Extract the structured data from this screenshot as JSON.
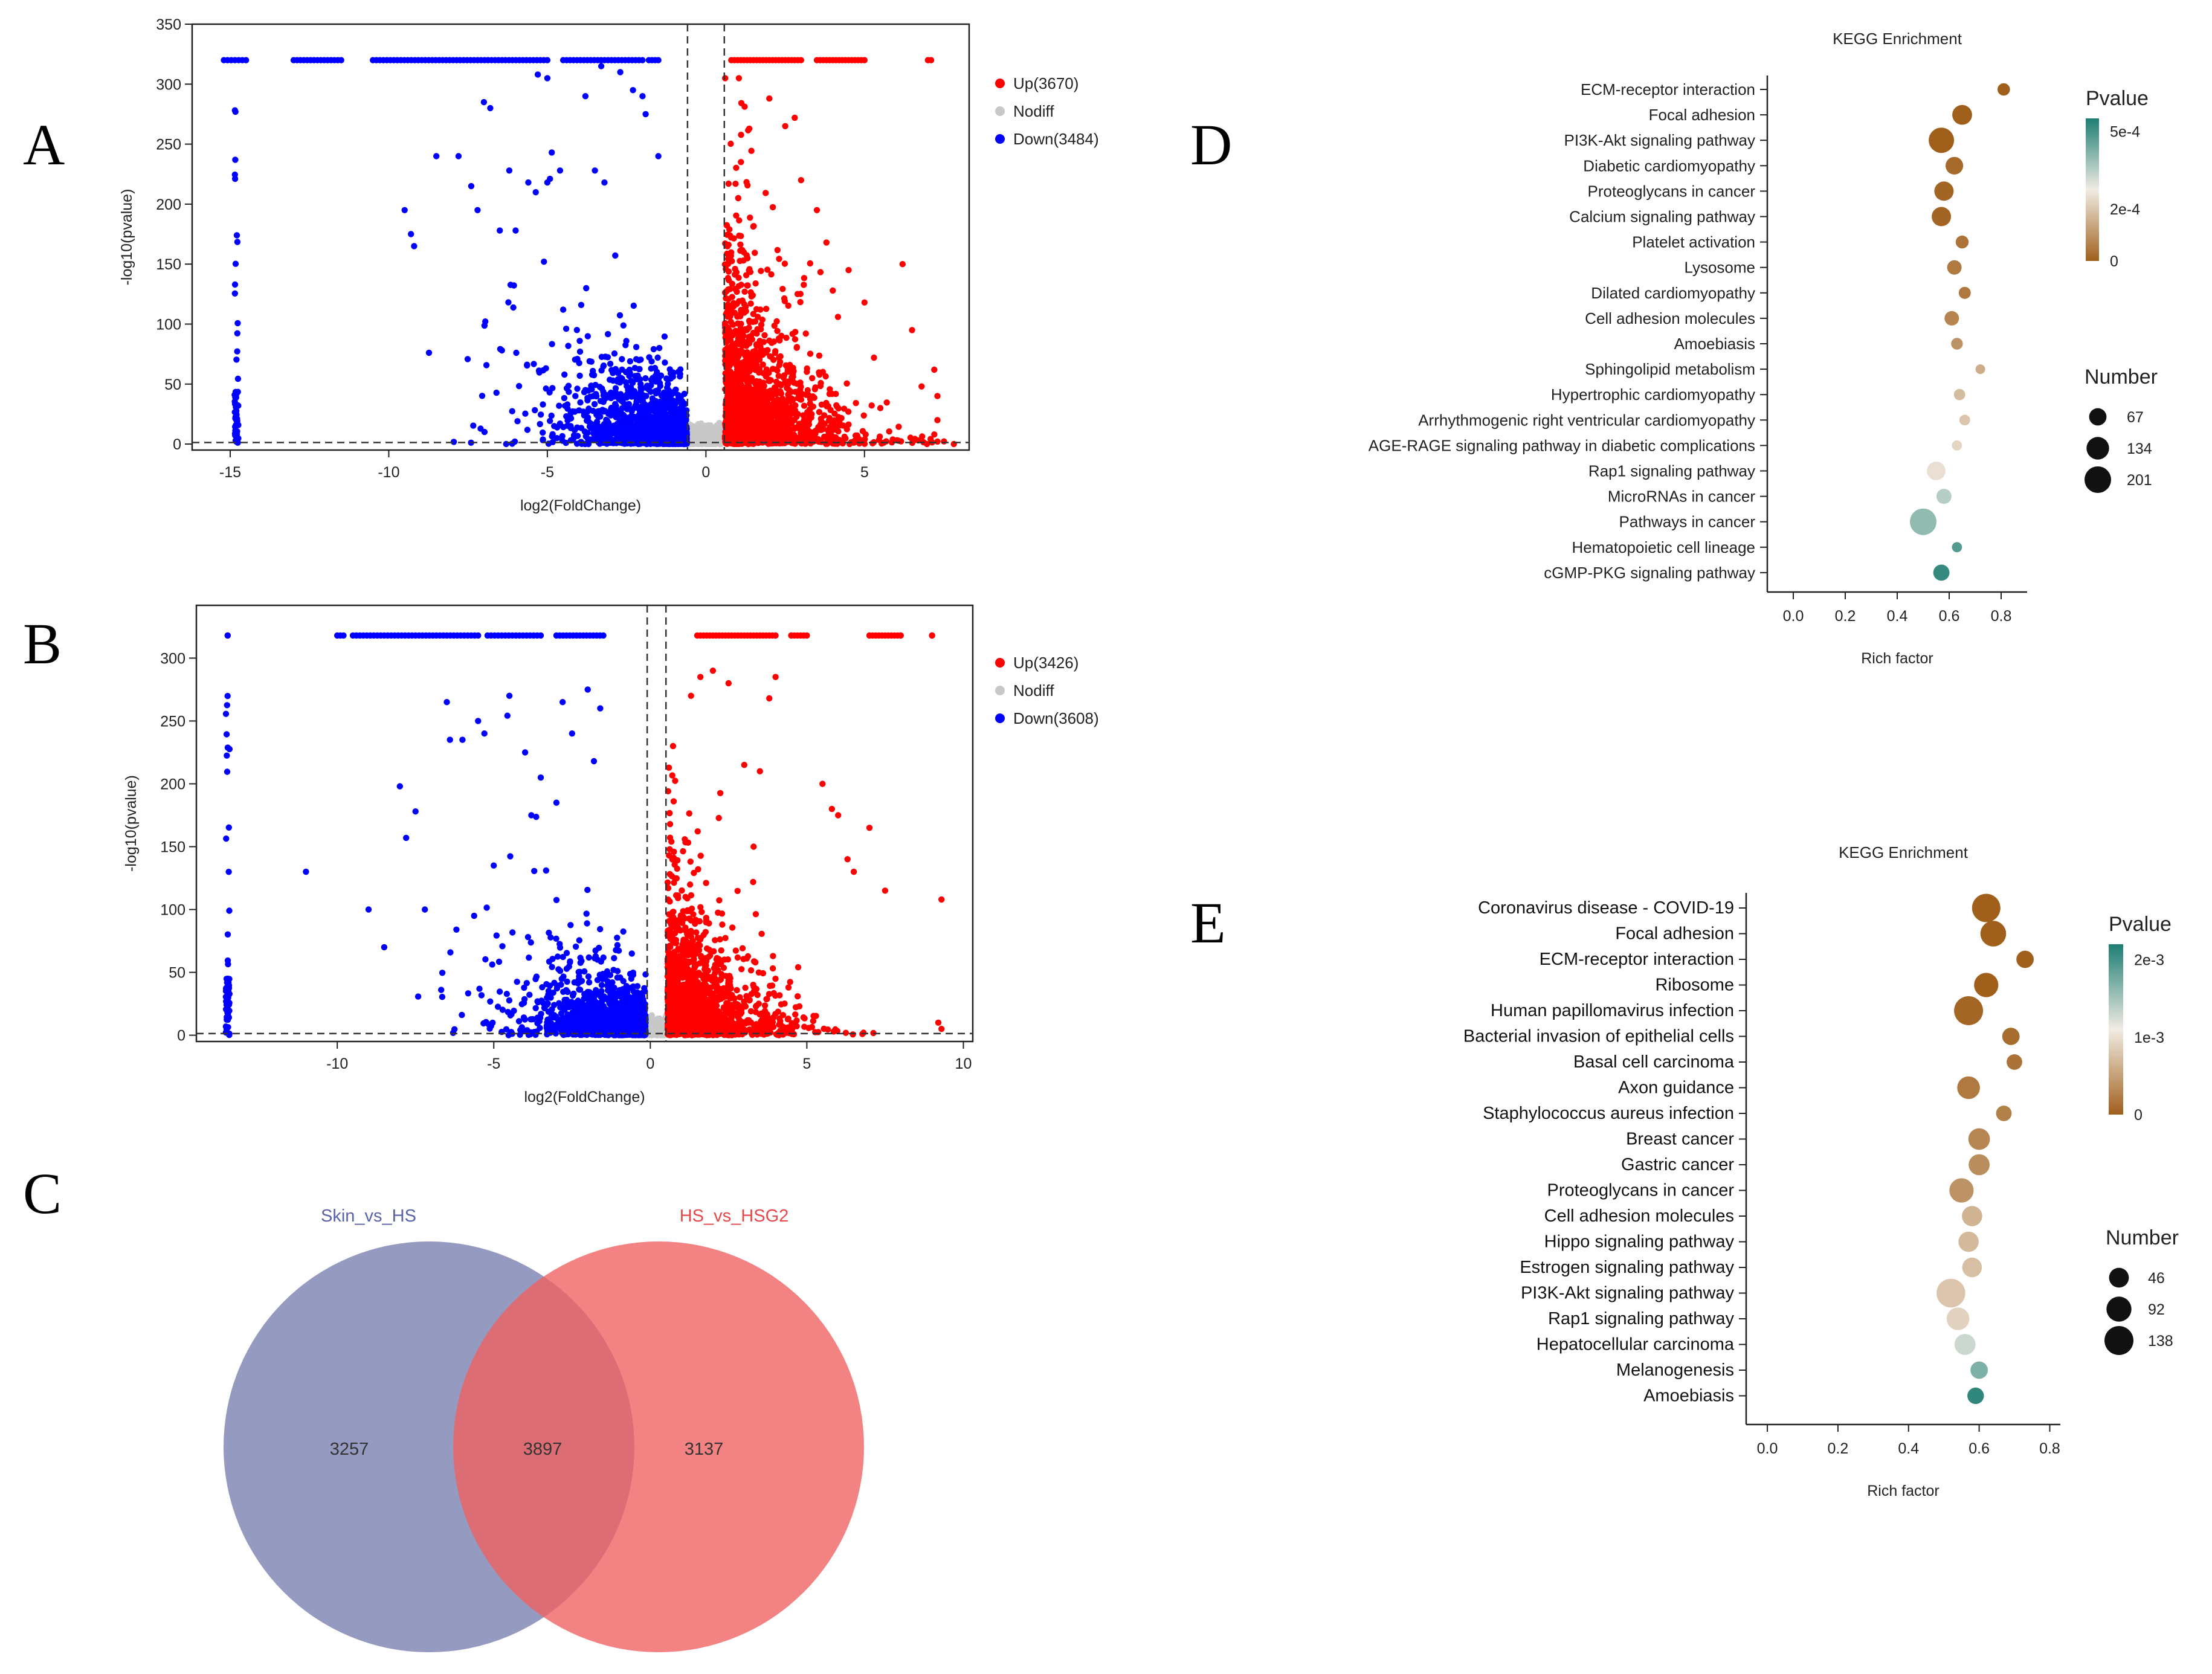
{
  "panel_letters": {
    "A": "A",
    "B": "B",
    "C": "C",
    "D": "D",
    "E": "E"
  },
  "colors": {
    "up": "#ff0000",
    "nodiff": "#c8c8c8",
    "down": "#0000ff",
    "venn_left": "#8288b6",
    "venn_right": "#f06060",
    "p_low": "#a0601c",
    "p_mid": "#f1ece4",
    "p_high": "#1d7e73"
  },
  "chart_data": [
    {
      "id": "A",
      "type": "scatter",
      "xlabel": "log2(FoldChange)",
      "ylabel": "-log10(pvalue)",
      "xlim": [
        -16.2,
        8.3
      ],
      "ylim": [
        -5,
        350
      ],
      "xticks": [
        -15,
        -10,
        -5,
        0,
        5
      ],
      "yticks": [
        0,
        50,
        100,
        150,
        200,
        250,
        300,
        350
      ],
      "vlines": [
        -0.58,
        0.58
      ],
      "hline": 1.3,
      "legend": [
        {
          "key": "up",
          "label": "Up",
          "count": "(3670)"
        },
        {
          "key": "nodiff",
          "label": "Nodiff",
          "count": ""
        },
        {
          "key": "down",
          "label": "Down",
          "count": "(3484)"
        }
      ],
      "cap": 320,
      "pile_x": -14.8,
      "down_cap_x": [
        [
          -15.2,
          -14.5
        ],
        [
          -13,
          -11.5
        ],
        [
          -10.5,
          -5
        ],
        [
          -4.5,
          -2
        ],
        [
          -1.8,
          -1.5
        ]
      ],
      "up_cap_x": [
        [
          0.8,
          3.0
        ],
        [
          3.5,
          5.0
        ],
        [
          7.0,
          7.1
        ]
      ],
      "down_sparse": [
        [
          -9.5,
          195
        ],
        [
          -9.3,
          175
        ],
        [
          -9.2,
          165
        ],
        [
          -8.5,
          240
        ],
        [
          -7.8,
          240
        ],
        [
          -7.4,
          215
        ],
        [
          -7.2,
          195
        ],
        [
          -7,
          285
        ],
        [
          -6.8,
          280
        ],
        [
          -6.5,
          178
        ],
        [
          -6.2,
          228
        ],
        [
          -6,
          178
        ],
        [
          -5.6,
          218
        ],
        [
          -5.3,
          308
        ],
        [
          -5,
          305
        ],
        [
          -5,
          218
        ],
        [
          -4.6,
          228
        ],
        [
          -4.5,
          112
        ],
        [
          -3.8,
          290
        ],
        [
          -3.5,
          228
        ],
        [
          -3.3,
          315
        ],
        [
          -3.2,
          218
        ],
        [
          -2.7,
          310
        ],
        [
          -2.3,
          295
        ],
        [
          -2,
          290
        ],
        [
          -1.9,
          275
        ],
        [
          -1.5,
          240
        ]
      ],
      "up_sparse": [
        [
          2,
          288
        ],
        [
          2.5,
          265
        ],
        [
          2.8,
          272
        ],
        [
          3.0,
          220
        ],
        [
          3.5,
          195
        ],
        [
          3.8,
          168
        ],
        [
          4.0,
          128
        ],
        [
          4.5,
          145
        ],
        [
          5,
          118
        ],
        [
          5.3,
          72
        ],
        [
          5.5,
          30
        ],
        [
          6.2,
          150
        ],
        [
          6.5,
          95
        ],
        [
          6.8,
          48
        ],
        [
          7.2,
          62
        ],
        [
          7.3,
          40
        ],
        [
          7.3,
          20
        ],
        [
          7.2,
          8
        ]
      ],
      "down_dense": {
        "n": 1800,
        "xmax": -0.6,
        "scale": 1.2,
        "ymax": 315
      },
      "up_dense": {
        "n": 1900,
        "xmin": 0.6,
        "scale": 1.1,
        "ymax": 305
      },
      "nodiff_n": 400
    },
    {
      "id": "B",
      "type": "scatter",
      "xlabel": "log2(FoldChange)",
      "ylabel": "-log10(pvalue)",
      "xlim": [
        -14.5,
        10.3
      ],
      "ylim": [
        -5,
        342
      ],
      "xticks": [
        -10,
        -5,
        0,
        5,
        10
      ],
      "yticks": [
        0,
        50,
        100,
        150,
        200,
        250,
        300
      ],
      "vlines": [
        -0.1,
        0.5
      ],
      "hline": 1.3,
      "legend": [
        {
          "key": "up",
          "label": "Up",
          "count": "(3426)"
        },
        {
          "key": "nodiff",
          "label": "Nodiff",
          "count": ""
        },
        {
          "key": "down",
          "label": "Down",
          "count": "(3608)"
        }
      ],
      "cap": 318,
      "pile_x": -13.5,
      "down_cap_x": [
        [
          -13.5,
          -13.5
        ],
        [
          -10.0,
          -9.8
        ],
        [
          -9.5,
          -5.5
        ],
        [
          -5.2,
          -3.5
        ],
        [
          -3.0,
          -1.5
        ]
      ],
      "up_cap_x": [
        [
          1.5,
          4.0
        ],
        [
          4.5,
          5.0
        ],
        [
          7.0,
          8.0
        ],
        [
          9.0,
          9.0
        ]
      ],
      "down_sparse": [
        [
          -11,
          130
        ],
        [
          -9.0,
          100
        ],
        [
          -8.5,
          70
        ],
        [
          -8.0,
          198
        ],
        [
          -7.8,
          157
        ],
        [
          -7.5,
          178
        ],
        [
          -7.2,
          100
        ],
        [
          -6.5,
          265
        ],
        [
          -6.4,
          235
        ],
        [
          -6.0,
          235
        ],
        [
          -5.5,
          250
        ],
        [
          -5.3,
          240
        ],
        [
          -5.0,
          135
        ],
        [
          -4.5,
          270
        ],
        [
          -4.0,
          225
        ],
        [
          -3.8,
          175
        ],
        [
          -3.5,
          205
        ],
        [
          -3.0,
          185
        ],
        [
          -2.8,
          265
        ],
        [
          -2.5,
          240
        ],
        [
          -2.0,
          275
        ],
        [
          -1.8,
          218
        ],
        [
          -1.6,
          260
        ]
      ],
      "up_sparse": [
        [
          1.3,
          270
        ],
        [
          1.6,
          285
        ],
        [
          2.0,
          290
        ],
        [
          2.5,
          280
        ],
        [
          3.0,
          215
        ],
        [
          3.5,
          210
        ],
        [
          3.3,
          150
        ],
        [
          4.0,
          285
        ],
        [
          3.8,
          268
        ],
        [
          5.5,
          200
        ],
        [
          5.8,
          180
        ],
        [
          6.0,
          175
        ],
        [
          6.3,
          140
        ],
        [
          6.5,
          130
        ],
        [
          7.0,
          165
        ],
        [
          7.5,
          115
        ],
        [
          9.3,
          108
        ],
        [
          9.2,
          10
        ],
        [
          9.3,
          5
        ]
      ],
      "down_dense": {
        "n": 1900,
        "xmax": -0.15,
        "scale": 1.1,
        "ymax": 260
      },
      "up_dense": {
        "n": 1800,
        "xmin": 0.55,
        "scale": 1.0,
        "ymax": 230
      },
      "nodiff_n": 350
    },
    {
      "id": "C",
      "type": "venn",
      "sets": [
        {
          "name": "Skin_vs_HS",
          "only": "3257"
        },
        {
          "name": "HS_vs_HSG2",
          "only": "3137"
        }
      ],
      "overlap": "3897"
    },
    {
      "id": "D",
      "type": "scatter",
      "subtype": "kegg_dot",
      "title": "KEGG Enrichment",
      "xlabel": "Rich factor",
      "xlim": [
        -0.1,
        0.9
      ],
      "xticks": [
        "0.0",
        "0.2",
        "0.4",
        "0.6",
        "0.8"
      ],
      "pvalue_title": "Pvalue",
      "pvalue_max": 0.00055,
      "pvalue_ticks": [
        {
          "label": "5e-4",
          "v": 0.0005
        },
        {
          "label": "2e-4",
          "v": 0.0002
        },
        {
          "label": "0",
          "v": 0
        }
      ],
      "number_title": "Number",
      "number_legend": [
        67,
        134,
        201
      ],
      "size_max": 201,
      "terms": [
        {
          "name": "ECM-receptor interaction",
          "rich": 0.81,
          "number": 25,
          "p": 0.0
        },
        {
          "name": "Focal adhesion",
          "rich": 0.65,
          "number": 95,
          "p": 0.0
        },
        {
          "name": "PI3K-Akt signaling pathway",
          "rich": 0.57,
          "number": 180,
          "p": 0.0
        },
        {
          "name": "Diabetic cardiomyopathy",
          "rich": 0.62,
          "number": 70,
          "p": 2e-05
        },
        {
          "name": "Proteoglycans in cancer",
          "rich": 0.58,
          "number": 90,
          "p": 1e-05
        },
        {
          "name": "Calcium signaling pathway",
          "rich": 0.57,
          "number": 90,
          "p": 1e-05
        },
        {
          "name": "Platelet activation",
          "rich": 0.65,
          "number": 28,
          "p": 4e-05
        },
        {
          "name": "Lysosome",
          "rich": 0.62,
          "number": 40,
          "p": 5e-05
        },
        {
          "name": "Dilated cardiomyopathy",
          "rich": 0.66,
          "number": 22,
          "p": 5e-05
        },
        {
          "name": "Cell adhesion molecules",
          "rich": 0.61,
          "number": 40,
          "p": 7e-05
        },
        {
          "name": "Amoebiasis",
          "rich": 0.63,
          "number": 20,
          "p": 0.0001
        },
        {
          "name": "Sphingolipid metabolism",
          "rich": 0.72,
          "number": 10,
          "p": 0.00015
        },
        {
          "name": "Hypertrophic cardiomyopathy",
          "rich": 0.64,
          "number": 18,
          "p": 0.00018
        },
        {
          "name": "Arrhythmogenic right ventricular cardiomyopathy",
          "rich": 0.66,
          "number": 15,
          "p": 0.0002
        },
        {
          "name": "AGE-RAGE signaling pathway in diabetic complications",
          "rich": 0.63,
          "number": 12,
          "p": 0.00023
        },
        {
          "name": "Rap1 signaling pathway",
          "rich": 0.55,
          "number": 80,
          "p": 0.00025
        },
        {
          "name": "MicroRNAs in cancer",
          "rich": 0.58,
          "number": 45,
          "p": 0.00035
        },
        {
          "name": "Pathways in cancer",
          "rich": 0.5,
          "number": 201,
          "p": 0.0004
        },
        {
          "name": "Hematopoietic cell lineage",
          "rich": 0.63,
          "number": 12,
          "p": 0.00048
        },
        {
          "name": "cGMP-PKG signaling pathway",
          "rich": 0.57,
          "number": 55,
          "p": 0.00052
        }
      ]
    },
    {
      "id": "E",
      "type": "scatter",
      "subtype": "kegg_dot",
      "title": "KEGG Enrichment",
      "xlabel": "Rich factor",
      "xlim": [
        -0.06,
        0.83
      ],
      "xticks": [
        "0.0",
        "0.2",
        "0.4",
        "0.6",
        "0.8"
      ],
      "pvalue_title": "Pvalue",
      "pvalue_max": 0.0022,
      "pvalue_ticks": [
        {
          "label": "2e-3",
          "v": 0.002
        },
        {
          "label": "1e-3",
          "v": 0.001
        },
        {
          "label": "0",
          "v": 0
        }
      ],
      "number_title": "Number",
      "number_legend": [
        46,
        92,
        138
      ],
      "size_max": 138,
      "terms": [
        {
          "name": "Coronavirus disease - COVID-19",
          "rich": 0.62,
          "number": 130,
          "p": 0.0
        },
        {
          "name": "Focal adhesion",
          "rich": 0.64,
          "number": 100,
          "p": 0.0
        },
        {
          "name": "ECM-receptor interaction",
          "rich": 0.73,
          "number": 30,
          "p": 0.0
        },
        {
          "name": "Ribosome",
          "rich": 0.62,
          "number": 85,
          "p": 0.0
        },
        {
          "name": "Human papillomavirus infection",
          "rich": 0.57,
          "number": 138,
          "p": 5e-05
        },
        {
          "name": "Bacterial invasion of epithelial cells",
          "rich": 0.69,
          "number": 30,
          "p": 0.0001
        },
        {
          "name": "Basal cell carcinoma",
          "rich": 0.7,
          "number": 20,
          "p": 0.00015
        },
        {
          "name": "Axon guidance",
          "rich": 0.57,
          "number": 70,
          "p": 0.0002
        },
        {
          "name": "Staphylococcus aureus infection",
          "rich": 0.67,
          "number": 20,
          "p": 0.00025
        },
        {
          "name": "Breast cancer",
          "rich": 0.6,
          "number": 60,
          "p": 0.0003
        },
        {
          "name": "Gastric cancer",
          "rich": 0.6,
          "number": 55,
          "p": 0.00035
        },
        {
          "name": "Proteoglycans in cancer",
          "rich": 0.55,
          "number": 85,
          "p": 0.0004
        },
        {
          "name": "Cell adhesion molecules",
          "rich": 0.58,
          "number": 50,
          "p": 0.00065
        },
        {
          "name": "Hippo signaling pathway",
          "rich": 0.57,
          "number": 50,
          "p": 0.0007
        },
        {
          "name": "Estrogen signaling pathway",
          "rich": 0.58,
          "number": 45,
          "p": 0.00075
        },
        {
          "name": "PI3K-Akt signaling pathway",
          "rich": 0.52,
          "number": 135,
          "p": 0.0008
        },
        {
          "name": "Rap1 signaling pathway",
          "rich": 0.54,
          "number": 70,
          "p": 0.0009
        },
        {
          "name": "Hepatocellular carcinoma",
          "rich": 0.56,
          "number": 55,
          "p": 0.0013
        },
        {
          "name": "Melanogenesis",
          "rich": 0.6,
          "number": 30,
          "p": 0.0017
        },
        {
          "name": "Amoebiasis",
          "rich": 0.59,
          "number": 25,
          "p": 0.0021
        }
      ]
    }
  ]
}
